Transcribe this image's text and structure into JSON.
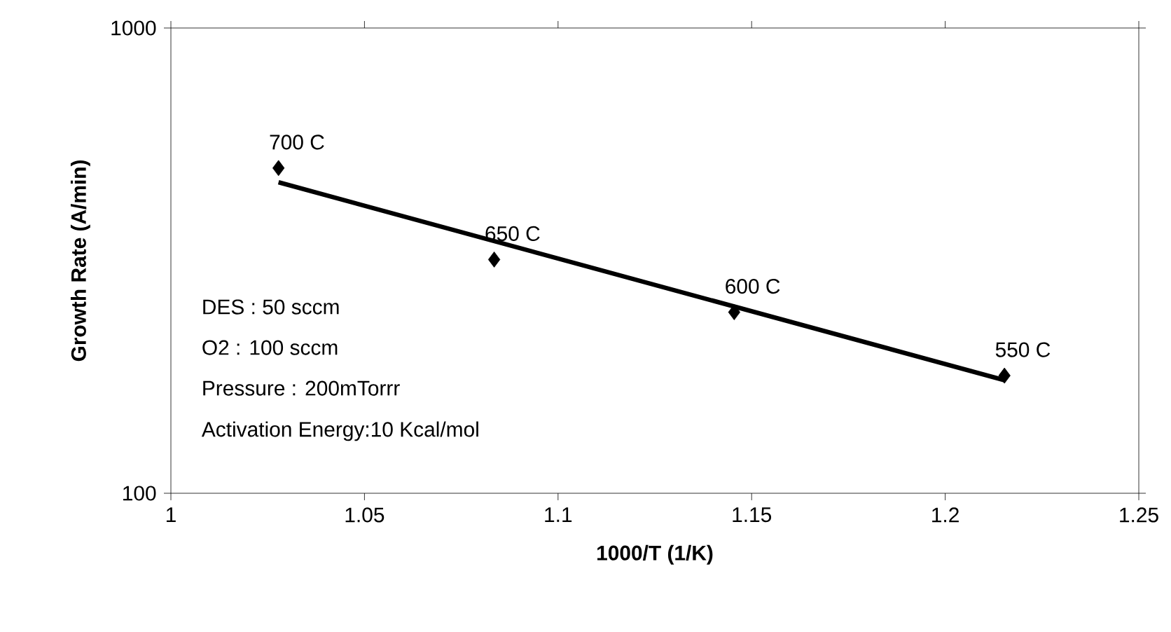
{
  "chart_data": {
    "type": "scatter",
    "xlabel": "1000/T (1/K)",
    "ylabel": "Growth Rate (A/min)",
    "xlim": [
      1,
      1.25
    ],
    "xticks": [
      1,
      1.05,
      1.1,
      1.15,
      1.2,
      1.25
    ],
    "ylim": [
      100,
      1000
    ],
    "yticks": [
      100,
      1000
    ],
    "log": "y",
    "series": [
      {
        "type": "scatter",
        "marker": "diamond",
        "color": "#000000",
        "x": [
          1.0278,
          1.0835,
          1.1455,
          1.2153
        ],
        "values": [
          500,
          318,
          245,
          179
        ]
      },
      {
        "type": "line",
        "marker": "none",
        "color": "#000000",
        "x": [
          1.0278,
          1.2153
        ],
        "values": [
          466,
          175
        ]
      }
    ],
    "annotations": [
      {
        "text": "700 C",
        "x": 1.0278,
        "y": 500
      },
      {
        "text": "650 C",
        "x": 1.0835,
        "y": 318
      },
      {
        "text": "600 C",
        "x": 1.1455,
        "y": 245
      },
      {
        "text": "550 C",
        "x": 1.2153,
        "y": 179
      },
      "DES : 50 sccm",
      "O2 : 100 sccm",
      "Pressure : 200mTorrr",
      "Activation Energy:10 Kcal/mol"
    ]
  }
}
